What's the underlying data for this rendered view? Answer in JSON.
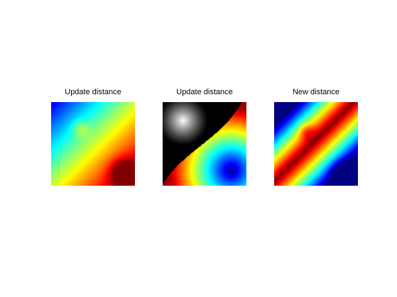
{
  "figure": {
    "panels": [
      {
        "title": "Update distance",
        "colormap": "jet"
      },
      {
        "title": "Update distance",
        "colormap": "jet+gray"
      },
      {
        "title": "New distance",
        "colormap": "jet"
      }
    ]
  }
}
